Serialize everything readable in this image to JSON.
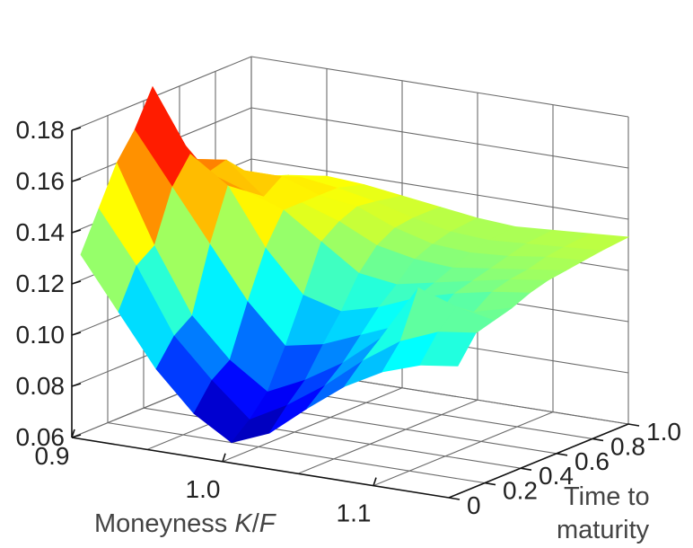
{
  "chart_data": {
    "type": "surface",
    "title": "",
    "zlabel": "",
    "xlabel_prefix": "Moneyness ",
    "xlabel_var": "K",
    "xlabel_sep": "/",
    "xlabel_var2": "F",
    "ylabel_line1": "Time to",
    "ylabel_line2": "maturity",
    "xlim": [
      0.9,
      1.15
    ],
    "ylim": [
      0,
      1.0
    ],
    "zlim": [
      0.06,
      0.18
    ],
    "x_ticks": [
      "0.9",
      "1.0",
      "1.1"
    ],
    "y_ticks": [
      "0",
      "0.2",
      "0.4",
      "0.6",
      "0.8",
      "1.0"
    ],
    "z_ticks": [
      "0.06",
      "0.08",
      "0.10",
      "0.12",
      "0.14",
      "0.16",
      "0.18"
    ],
    "moneyness": [
      0.9,
      0.925,
      0.95,
      0.975,
      1.0,
      1.025,
      1.05,
      1.075,
      1.1,
      1.125,
      1.15
    ],
    "maturity": [
      0.05,
      0.15,
      0.25,
      0.35,
      0.45,
      0.55,
      0.65,
      0.75,
      0.85,
      1.0
    ],
    "implied_vol": [
      [
        0.13,
        0.11,
        0.09,
        0.075,
        0.066,
        0.072,
        0.084,
        0.095,
        0.103,
        0.108,
        0.11
      ],
      [
        0.145,
        0.125,
        0.1,
        0.085,
        0.072,
        0.08,
        0.09,
        0.102,
        0.112,
        0.118,
        0.12
      ],
      [
        0.16,
        0.13,
        0.105,
        0.09,
        0.08,
        0.087,
        0.096,
        0.108,
        0.13,
        0.125,
        0.122
      ],
      [
        0.17,
        0.15,
        0.13,
        0.11,
        0.095,
        0.098,
        0.104,
        0.11,
        0.116,
        0.12,
        0.124
      ],
      [
        0.184,
        0.16,
        0.15,
        0.128,
        0.112,
        0.108,
        0.112,
        0.118,
        0.122,
        0.125,
        0.127
      ],
      [
        0.165,
        0.15,
        0.145,
        0.14,
        0.13,
        0.12,
        0.118,
        0.121,
        0.124,
        0.127,
        0.129
      ],
      [
        0.15,
        0.152,
        0.14,
        0.14,
        0.135,
        0.128,
        0.125,
        0.124,
        0.126,
        0.128,
        0.13
      ],
      [
        0.14,
        0.145,
        0.145,
        0.14,
        0.138,
        0.132,
        0.128,
        0.127,
        0.128,
        0.13,
        0.131
      ],
      [
        0.135,
        0.14,
        0.142,
        0.14,
        0.137,
        0.133,
        0.13,
        0.129,
        0.13,
        0.131,
        0.132
      ],
      [
        0.132,
        0.136,
        0.138,
        0.137,
        0.135,
        0.133,
        0.131,
        0.13,
        0.131,
        0.132,
        0.133
      ]
    ],
    "colormap": [
      "#00008f",
      "#0000ff",
      "#0080ff",
      "#00ffff",
      "#80ff80",
      "#ffff00",
      "#ff8000",
      "#ff0000",
      "#800000"
    ],
    "grid": true
  }
}
